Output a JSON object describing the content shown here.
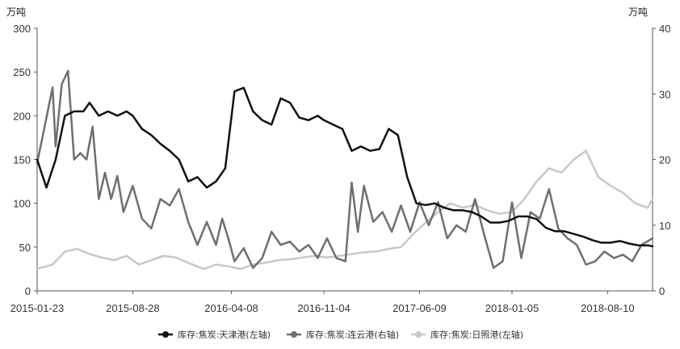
{
  "chart_data": {
    "type": "line",
    "left_axis": {
      "unit": "万吨",
      "ylim": [
        0,
        300
      ],
      "ticks": [
        "0",
        "50",
        "100",
        "150",
        "200",
        "250",
        "300"
      ]
    },
    "right_axis": {
      "unit": "万吨",
      "ylim": [
        0,
        40
      ],
      "ticks": [
        "0",
        "10",
        "20",
        "30",
        "40"
      ]
    },
    "x_range": [
      "2015-01-23",
      "2018-11-20"
    ],
    "x_ticks": [
      "2015-01-23",
      "2015-08-28",
      "2016-04-08",
      "2016-11-04",
      "2017-06-09",
      "2018-01-05",
      "2018-08-10"
    ],
    "grid": false,
    "legend_position": "bottom",
    "series": [
      {
        "name": "库存:焦炭:天津港(左轴)",
        "axis": "left",
        "color": "#111111",
        "points": [
          [
            "2015-01-23",
            150
          ],
          [
            "2015-02-13",
            118
          ],
          [
            "2015-03-06",
            150
          ],
          [
            "2015-03-27",
            200
          ],
          [
            "2015-04-17",
            205
          ],
          [
            "2015-05-08",
            205
          ],
          [
            "2015-05-22",
            215
          ],
          [
            "2015-06-12",
            200
          ],
          [
            "2015-07-03",
            205
          ],
          [
            "2015-07-24",
            200
          ],
          [
            "2015-08-14",
            205
          ],
          [
            "2015-08-28",
            200
          ],
          [
            "2015-09-18",
            185
          ],
          [
            "2015-10-09",
            178
          ],
          [
            "2015-10-30",
            168
          ],
          [
            "2015-11-20",
            160
          ],
          [
            "2015-12-11",
            150
          ],
          [
            "2016-01-01",
            125
          ],
          [
            "2016-01-22",
            130
          ],
          [
            "2016-02-12",
            118
          ],
          [
            "2016-03-04",
            125
          ],
          [
            "2016-03-25",
            140
          ],
          [
            "2016-04-15",
            228
          ],
          [
            "2016-05-06",
            232
          ],
          [
            "2016-05-27",
            205
          ],
          [
            "2016-06-17",
            195
          ],
          [
            "2016-07-08",
            190
          ],
          [
            "2016-07-29",
            220
          ],
          [
            "2016-08-19",
            215
          ],
          [
            "2016-09-09",
            198
          ],
          [
            "2016-09-30",
            195
          ],
          [
            "2016-10-21",
            200
          ],
          [
            "2016-11-04",
            195
          ],
          [
            "2016-11-25",
            190
          ],
          [
            "2016-12-16",
            185
          ],
          [
            "2017-01-06",
            160
          ],
          [
            "2017-01-27",
            165
          ],
          [
            "2017-02-17",
            160
          ],
          [
            "2017-03-10",
            162
          ],
          [
            "2017-03-31",
            185
          ],
          [
            "2017-04-21",
            178
          ],
          [
            "2017-05-12",
            130
          ],
          [
            "2017-06-02",
            100
          ],
          [
            "2017-06-23",
            98
          ],
          [
            "2017-07-14",
            100
          ],
          [
            "2017-08-04",
            95
          ],
          [
            "2017-08-25",
            92
          ],
          [
            "2017-09-15",
            92
          ],
          [
            "2017-10-06",
            90
          ],
          [
            "2017-10-27",
            85
          ],
          [
            "2017-11-17",
            78
          ],
          [
            "2017-12-08",
            78
          ],
          [
            "2017-12-29",
            80
          ],
          [
            "2018-01-19",
            85
          ],
          [
            "2018-02-09",
            85
          ],
          [
            "2018-03-02",
            82
          ],
          [
            "2018-03-23",
            72
          ],
          [
            "2018-04-13",
            68
          ],
          [
            "2018-05-04",
            68
          ],
          [
            "2018-05-25",
            65
          ],
          [
            "2018-06-15",
            62
          ],
          [
            "2018-07-06",
            58
          ],
          [
            "2018-07-27",
            55
          ],
          [
            "2018-08-17",
            55
          ],
          [
            "2018-09-07",
            57
          ],
          [
            "2018-09-28",
            54
          ],
          [
            "2018-10-19",
            52
          ],
          [
            "2018-11-09",
            52
          ],
          [
            "2018-11-20",
            51
          ]
        ]
      },
      {
        "name": "库存:焦炭:连云港(右轴)",
        "axis": "right",
        "color": "#6f6f6f",
        "points": [
          [
            "2015-01-23",
            19.5
          ],
          [
            "2015-02-06",
            24
          ],
          [
            "2015-02-27",
            31
          ],
          [
            "2015-03-06",
            22
          ],
          [
            "2015-03-20",
            31.5
          ],
          [
            "2015-04-03",
            33.5
          ],
          [
            "2015-04-17",
            20
          ],
          [
            "2015-05-01",
            21
          ],
          [
            "2015-05-15",
            20
          ],
          [
            "2015-05-29",
            25
          ],
          [
            "2015-06-12",
            14
          ],
          [
            "2015-06-26",
            18
          ],
          [
            "2015-07-10",
            14
          ],
          [
            "2015-07-24",
            17.5
          ],
          [
            "2015-08-07",
            12
          ],
          [
            "2015-08-28",
            16
          ],
          [
            "2015-09-18",
            11
          ],
          [
            "2015-10-09",
            9.5
          ],
          [
            "2015-10-30",
            14
          ],
          [
            "2015-11-20",
            13
          ],
          [
            "2015-12-11",
            15.5
          ],
          [
            "2016-01-01",
            10.5
          ],
          [
            "2016-01-22",
            7
          ],
          [
            "2016-02-12",
            10.5
          ],
          [
            "2016-03-04",
            7
          ],
          [
            "2016-03-18",
            11
          ],
          [
            "2016-04-01",
            8
          ],
          [
            "2016-04-15",
            4.5
          ],
          [
            "2016-05-06",
            6.5
          ],
          [
            "2016-05-27",
            3.5
          ],
          [
            "2016-06-17",
            5
          ],
          [
            "2016-07-08",
            9
          ],
          [
            "2016-07-29",
            7
          ],
          [
            "2016-08-19",
            7.5
          ],
          [
            "2016-09-09",
            6
          ],
          [
            "2016-09-30",
            7
          ],
          [
            "2016-10-21",
            5
          ],
          [
            "2016-11-11",
            8
          ],
          [
            "2016-12-02",
            5
          ],
          [
            "2016-12-23",
            4.5
          ],
          [
            "2017-01-06",
            16.5
          ],
          [
            "2017-01-20",
            9
          ],
          [
            "2017-02-03",
            16
          ],
          [
            "2017-02-24",
            10.5
          ],
          [
            "2017-03-17",
            12
          ],
          [
            "2017-04-07",
            9
          ],
          [
            "2017-04-28",
            13
          ],
          [
            "2017-05-19",
            9
          ],
          [
            "2017-06-09",
            13.5
          ],
          [
            "2017-06-30",
            10
          ],
          [
            "2017-07-21",
            13.5
          ],
          [
            "2017-08-11",
            8
          ],
          [
            "2017-09-01",
            10
          ],
          [
            "2017-09-22",
            9
          ],
          [
            "2017-10-13",
            14
          ],
          [
            "2017-11-03",
            8.5
          ],
          [
            "2017-11-24",
            3.5
          ],
          [
            "2017-12-15",
            4.5
          ],
          [
            "2018-01-05",
            13.5
          ],
          [
            "2018-01-26",
            5
          ],
          [
            "2018-02-16",
            12
          ],
          [
            "2018-03-09",
            11
          ],
          [
            "2018-03-30",
            15.5
          ],
          [
            "2018-04-20",
            9.5
          ],
          [
            "2018-05-11",
            8
          ],
          [
            "2018-06-01",
            7
          ],
          [
            "2018-06-22",
            4
          ],
          [
            "2018-07-13",
            4.5
          ],
          [
            "2018-08-03",
            6
          ],
          [
            "2018-08-24",
            5
          ],
          [
            "2018-09-14",
            5.5
          ],
          [
            "2018-10-05",
            4.5
          ],
          [
            "2018-10-26",
            7
          ],
          [
            "2018-11-20",
            8
          ]
        ]
      },
      {
        "name": "库存:焦炭:日照港(左轴)",
        "axis": "left",
        "color": "#c8c8c8",
        "points": [
          [
            "2015-01-23",
            25
          ],
          [
            "2015-02-27",
            30
          ],
          [
            "2015-03-27",
            45
          ],
          [
            "2015-04-24",
            48
          ],
          [
            "2015-05-22",
            42
          ],
          [
            "2015-06-19",
            38
          ],
          [
            "2015-07-17",
            35
          ],
          [
            "2015-08-14",
            40
          ],
          [
            "2015-09-11",
            30
          ],
          [
            "2015-10-09",
            35
          ],
          [
            "2015-11-06",
            40
          ],
          [
            "2015-12-04",
            38
          ],
          [
            "2016-01-01",
            32
          ],
          [
            "2016-02-05",
            25
          ],
          [
            "2016-03-04",
            30
          ],
          [
            "2016-04-01",
            28
          ],
          [
            "2016-04-29",
            25
          ],
          [
            "2016-05-27",
            30
          ],
          [
            "2016-06-24",
            32
          ],
          [
            "2016-07-22",
            35
          ],
          [
            "2016-08-19",
            36
          ],
          [
            "2016-09-16",
            38
          ],
          [
            "2016-10-14",
            40
          ],
          [
            "2016-11-11",
            38
          ],
          [
            "2016-12-09",
            40
          ],
          [
            "2017-01-06",
            42
          ],
          [
            "2017-02-03",
            44
          ],
          [
            "2017-03-03",
            45
          ],
          [
            "2017-03-31",
            48
          ],
          [
            "2017-04-28",
            50
          ],
          [
            "2017-05-26",
            65
          ],
          [
            "2017-06-23",
            78
          ],
          [
            "2017-07-21",
            90
          ],
          [
            "2017-08-18",
            100
          ],
          [
            "2017-09-15",
            95
          ],
          [
            "2017-10-13",
            98
          ],
          [
            "2017-11-10",
            92
          ],
          [
            "2017-12-08",
            88
          ],
          [
            "2018-01-05",
            90
          ],
          [
            "2018-02-02",
            105
          ],
          [
            "2018-03-02",
            125
          ],
          [
            "2018-03-30",
            140
          ],
          [
            "2018-04-27",
            135
          ],
          [
            "2018-05-25",
            150
          ],
          [
            "2018-06-22",
            160
          ],
          [
            "2018-07-20",
            130
          ],
          [
            "2018-08-17",
            120
          ],
          [
            "2018-09-14",
            112
          ],
          [
            "2018-10-12",
            100
          ],
          [
            "2018-11-09",
            95
          ],
          [
            "2018-11-20",
            105
          ]
        ]
      }
    ]
  }
}
